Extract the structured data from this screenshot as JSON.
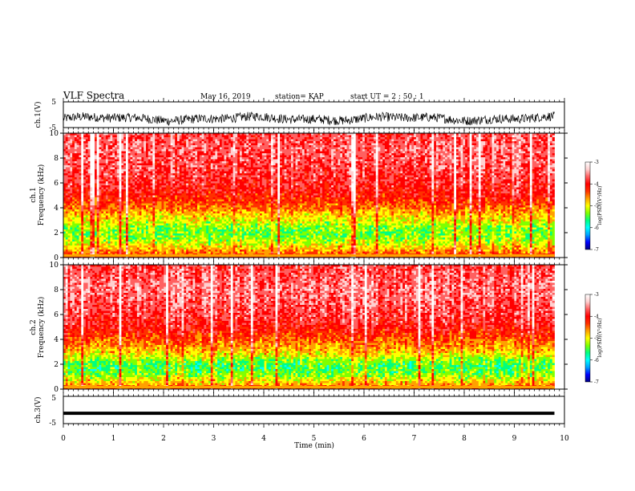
{
  "header": {
    "title": "VLF Spectra",
    "date": "May 16, 2019",
    "station": "station= KAP",
    "start_ut": "start  UT =   2  : 50 : 1"
  },
  "colors": {
    "scale": [
      "#000080",
      "#0000ff",
      "#00a0ff",
      "#00ffff",
      "#00ff80",
      "#80ff00",
      "#ffff00",
      "#ffa000",
      "#ff3000",
      "#ff0000",
      "#ff6060",
      "#ffd0d0",
      "#ffffff"
    ],
    "trace": "#000000"
  },
  "chart_data": [
    {
      "type": "line",
      "ylabel": "ch.1(V)",
      "ylim": [
        -5,
        5
      ],
      "yticks": [
        "5",
        "-5"
      ],
      "xlim": [
        0,
        10
      ],
      "x_extent_min": 9.8,
      "y_baseline": -1.5,
      "y_amplitude": 1.8,
      "xlabel": ""
    },
    {
      "type": "heatmap",
      "ylabel": "ch.1\nFrequency  (kHz)",
      "ylim": [
        0,
        10
      ],
      "yticks": [
        "0",
        "2",
        "4",
        "6",
        "8",
        "10"
      ],
      "xlim": [
        0,
        10
      ],
      "x_extent_min": 9.8,
      "colorbar": {
        "label": "log(PSD)(V²/Hz)",
        "range": [
          -7,
          -3
        ],
        "ticks": [
          "-3",
          "-4",
          "-5",
          "-6",
          "-7"
        ]
      },
      "profile_freq_khz": [
        0,
        0.5,
        1,
        1.5,
        2,
        2.5,
        3,
        3.5,
        4,
        4.5,
        5,
        6,
        7,
        8,
        9,
        10
      ],
      "profile_log_psd": [
        -4.2,
        -4.6,
        -5.0,
        -5.3,
        -5.4,
        -5.3,
        -5.0,
        -4.8,
        -4.5,
        -4.3,
        -4.1,
        -3.9,
        -3.8,
        -3.7,
        -3.7,
        -3.8
      ]
    },
    {
      "type": "heatmap",
      "ylabel": "ch.2\nFrequency  (kHz)",
      "ylim": [
        0,
        10
      ],
      "yticks": [
        "0",
        "2",
        "4",
        "6",
        "8",
        "10"
      ],
      "xlim": [
        0,
        10
      ],
      "x_extent_min": 9.8,
      "colorbar": {
        "label": "log(PSD)(V²/Hz)",
        "range": [
          -7,
          -3
        ],
        "ticks": [
          "-3",
          "-4",
          "-5",
          "-6",
          "-7"
        ]
      },
      "profile_freq_khz": [
        0,
        0.5,
        1,
        1.5,
        2,
        2.5,
        3,
        3.5,
        4,
        4.5,
        5,
        6,
        7,
        8,
        9,
        10
      ],
      "profile_log_psd": [
        -4.3,
        -4.8,
        -5.2,
        -5.5,
        -5.5,
        -5.2,
        -4.8,
        -4.6,
        -4.4,
        -4.2,
        -4.0,
        -3.8,
        -3.7,
        -3.6,
        -3.7,
        -3.8
      ]
    },
    {
      "type": "line",
      "ylabel": "ch.3(V)",
      "ylim": [
        -5,
        5
      ],
      "yticks": [
        "5",
        "-5"
      ],
      "xlim": [
        0,
        10
      ],
      "x_extent_min": 9.8,
      "y_value": -1.2,
      "xlabel": "Time  (min)",
      "xticks": [
        "0",
        "1",
        "2",
        "3",
        "4",
        "5",
        "6",
        "7",
        "8",
        "9",
        "10"
      ]
    }
  ]
}
